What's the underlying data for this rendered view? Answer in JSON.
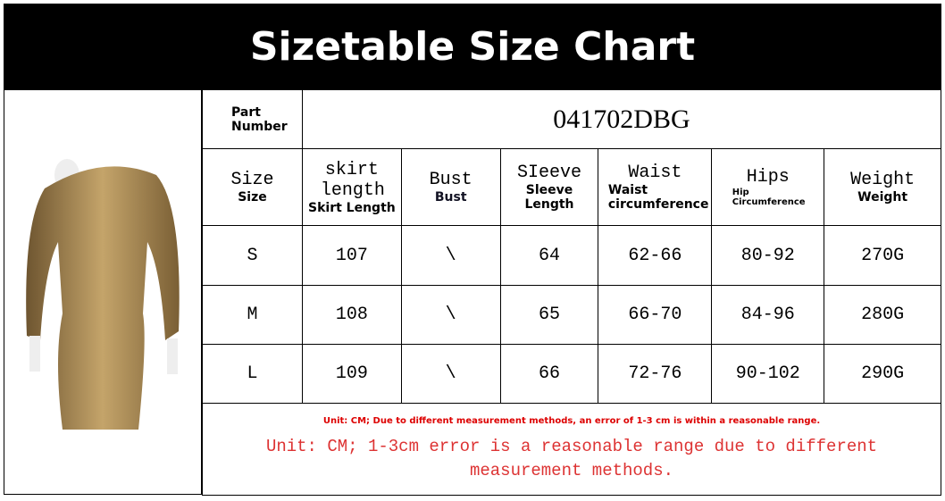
{
  "title": "Sizetable Size Chart",
  "part_number": {
    "label": "Part Number",
    "value": "041702DBG"
  },
  "headers": [
    {
      "main": "Size",
      "sub": "Size"
    },
    {
      "main": "skirt length",
      "sub": "Skirt Length"
    },
    {
      "main": "Bust",
      "sub": "Bust"
    },
    {
      "main": "SIeeve",
      "sub": "Sleeve Length"
    },
    {
      "main": "Waist",
      "sub": "Waist circumference"
    },
    {
      "main": "Hips",
      "sub": "Hip Circumference"
    },
    {
      "main": "Weight",
      "sub": "Weight"
    }
  ],
  "rows": [
    [
      "S",
      "107",
      "\\",
      "64",
      "62-66",
      "80-92",
      "270G"
    ],
    [
      "M",
      "108",
      "\\",
      "65",
      "66-70",
      "84-96",
      "280G"
    ],
    [
      "L",
      "109",
      "\\",
      "66",
      "72-76",
      "90-102",
      "290G"
    ]
  ],
  "notes": {
    "small": "Unit: CM; Due to different measurement methods, an error of 1-3 cm is within a reasonable range.",
    "large": "Unit: CM; 1-3cm error is a reasonable range due to different measurement methods."
  },
  "colors": {
    "note": "#dd2222",
    "dress": "#9a7a45"
  }
}
